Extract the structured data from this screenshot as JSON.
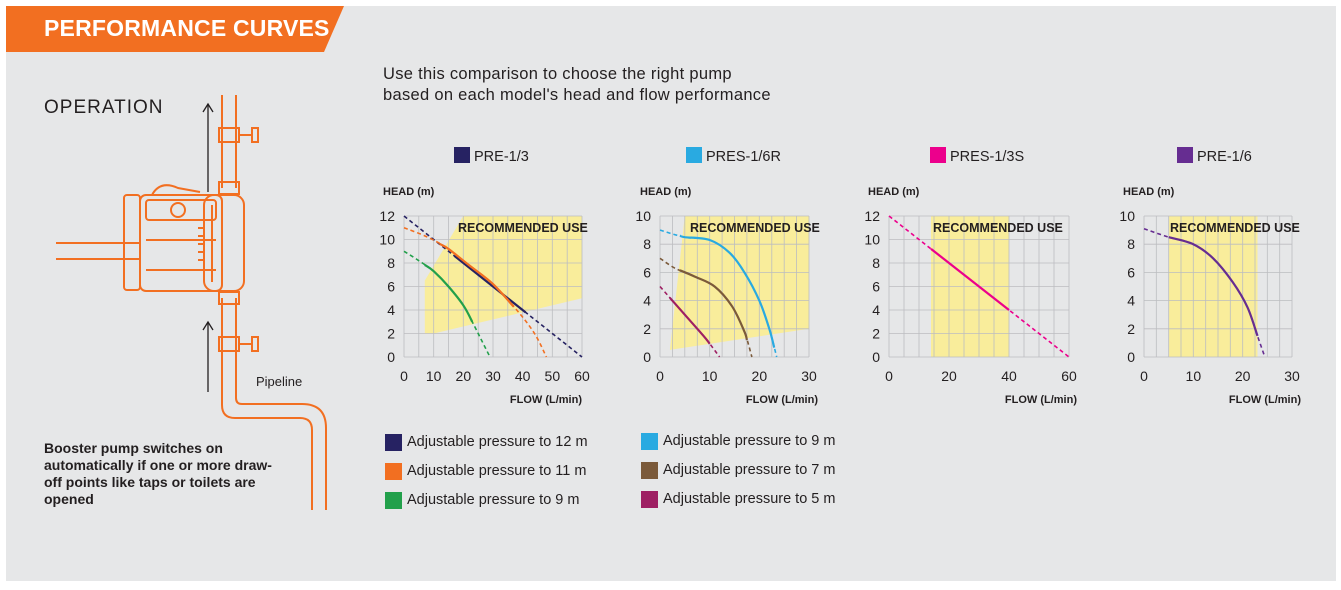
{
  "header": {
    "title": "PERFORMANCE CURVES",
    "color": "#f26f21"
  },
  "operation": {
    "title": "OPERATION",
    "pipeline_label": "Pipeline",
    "note": "Booster pump switches on automatically if one or more draw-off points like taps or toilets are opened",
    "illustration_color": "#f26f21"
  },
  "intro": {
    "line1": "Use this comparison to choose the right pump",
    "line2": "based on each model's head and flow performance"
  },
  "colors": {
    "recommended_zone": "#f9ed9b",
    "grid": "#bcbdc0",
    "axis_text": "#231f20"
  },
  "chart_data": [
    {
      "type": "line",
      "title": "PRE-1/3",
      "title_color": "#262262",
      "xlabel": "FLOW (L/min)",
      "ylabel": "HEAD (m)",
      "recommended_label": "RECOMMENDED USE",
      "xlim": [
        0,
        60
      ],
      "ylim": [
        0,
        12
      ],
      "xticks": [
        0,
        10,
        20,
        30,
        40,
        50,
        60
      ],
      "yticks": [
        0,
        2,
        4,
        6,
        8,
        10,
        12
      ],
      "recommended_zone": [
        [
          7,
          2
        ],
        [
          7,
          6.5
        ],
        [
          20,
          12
        ],
        [
          60,
          12
        ],
        [
          60,
          5
        ],
        [
          10,
          2
        ]
      ],
      "series": [
        {
          "name": "Adjustable pressure to 12 m",
          "color": "#262262",
          "points": [
            [
              0,
              12
            ],
            [
              60,
              0
            ]
          ],
          "solid_range": [
            17,
            41
          ]
        },
        {
          "name": "Adjustable pressure to 11 m",
          "color": "#f26f21",
          "points": [
            [
              0,
              11
            ],
            [
              8,
              10.2
            ],
            [
              15,
              9.2
            ],
            [
              22,
              7.8
            ],
            [
              30,
              6.2
            ],
            [
              38,
              4
            ],
            [
              44,
              2
            ],
            [
              48,
              0
            ]
          ],
          "solid_range": [
            12,
            37
          ]
        },
        {
          "name": "Adjustable pressure to 9 m",
          "color": "#22a04b",
          "points": [
            [
              0,
              9
            ],
            [
              5,
              8.2
            ],
            [
              10,
              7.3
            ],
            [
              15,
              6
            ],
            [
              20,
              4.4
            ],
            [
              23,
              3
            ],
            [
              26,
              1.5
            ],
            [
              29,
              0
            ]
          ],
          "solid_range": [
            7,
            23
          ]
        }
      ]
    },
    {
      "type": "line",
      "title": "PRES-1/6R",
      "title_color": "#29aae1",
      "xlabel": "FLOW (L/min)",
      "ylabel": "HEAD (m)",
      "recommended_label": "RECOMMENDED USE",
      "xlim": [
        0,
        30
      ],
      "ylim": [
        0,
        10
      ],
      "xticks": [
        0,
        10,
        20,
        30
      ],
      "yticks": [
        0,
        2,
        4,
        6,
        8,
        10
      ],
      "recommended_zone": [
        [
          2,
          0.5
        ],
        [
          5,
          10
        ],
        [
          30,
          10
        ],
        [
          30,
          2
        ]
      ],
      "series": [
        {
          "name": "Adjustable pressure to 9 m",
          "color": "#29aae1",
          "points": [
            [
              0,
              9
            ],
            [
              5,
              8.5
            ],
            [
              10,
              8.3
            ],
            [
              14,
              7.4
            ],
            [
              17,
              6
            ],
            [
              20,
              4
            ],
            [
              22,
              2
            ],
            [
              23.5,
              0
            ]
          ],
          "solid_range": [
            4,
            23
          ]
        },
        {
          "name": "Adjustable pressure to 7 m",
          "color": "#7b5a3a",
          "points": [
            [
              0,
              7
            ],
            [
              3,
              6.3
            ],
            [
              7,
              5.7
            ],
            [
              11,
              5
            ],
            [
              14.5,
              3.6
            ],
            [
              17,
              1.8
            ],
            [
              18.5,
              0
            ]
          ],
          "solid_range": [
            4,
            17.5
          ]
        },
        {
          "name": "Adjustable pressure to 5 m",
          "color": "#9e1f63",
          "points": [
            [
              0,
              5
            ],
            [
              5,
              3
            ],
            [
              9,
              1.4
            ],
            [
              12,
              0
            ]
          ],
          "solid_range": [
            2,
            10
          ]
        }
      ]
    },
    {
      "type": "line",
      "title": "PRES-1/3S",
      "title_color": "#ec008c",
      "xlabel": "FLOW (L/min)",
      "ylabel": "HEAD (m)",
      "recommended_label": "RECOMMENDED USE",
      "xlim": [
        0,
        60
      ],
      "ylim": [
        0,
        12
      ],
      "xticks": [
        0,
        20,
        40,
        60
      ],
      "yticks": [
        0,
        2,
        4,
        6,
        8,
        10,
        12
      ],
      "recommended_zone": [
        [
          14,
          0
        ],
        [
          14,
          12
        ],
        [
          40,
          12
        ],
        [
          40,
          0
        ]
      ],
      "series": [
        {
          "name": "PRES-1/3S",
          "color": "#ec008c",
          "points": [
            [
              0,
              12
            ],
            [
              60,
              0
            ]
          ],
          "solid_range": [
            14,
            40
          ]
        }
      ]
    },
    {
      "type": "line",
      "title": "PRE-1/6",
      "title_color": "#662d91",
      "xlabel": "FLOW (L/min)",
      "ylabel": "HEAD (m)",
      "recommended_label": "RECOMMENDED USE",
      "xlim": [
        0,
        30
      ],
      "ylim": [
        0,
        10
      ],
      "xticks": [
        0,
        10,
        20,
        30
      ],
      "yticks": [
        0,
        2,
        4,
        6,
        8,
        10
      ],
      "recommended_zone": [
        [
          5,
          0
        ],
        [
          5,
          10
        ],
        [
          23,
          10
        ],
        [
          23,
          0
        ]
      ],
      "series": [
        {
          "name": "PRE-1/6",
          "color": "#662d91",
          "points": [
            [
              0,
              9.1
            ],
            [
              5,
              8.5
            ],
            [
              10,
              8
            ],
            [
              14,
              7
            ],
            [
              18,
              5.3
            ],
            [
              21,
              3.5
            ],
            [
              23,
              1.5
            ],
            [
              24.5,
              0
            ]
          ],
          "solid_range": [
            5,
            23
          ]
        }
      ]
    }
  ],
  "legend": [
    {
      "label": "Adjustable pressure to 12 m",
      "color": "#262262"
    },
    {
      "label": "Adjustable pressure to 11 m",
      "color": "#f26f21"
    },
    {
      "label": "Adjustable pressure to 9 m",
      "color": "#22a04b"
    },
    {
      "label": "Adjustable pressure to 9 m",
      "color": "#29aae1"
    },
    {
      "label": "Adjustable pressure to 7 m",
      "color": "#7b5a3a"
    },
    {
      "label": "Adjustable pressure to 5 m",
      "color": "#9e1f63"
    }
  ]
}
